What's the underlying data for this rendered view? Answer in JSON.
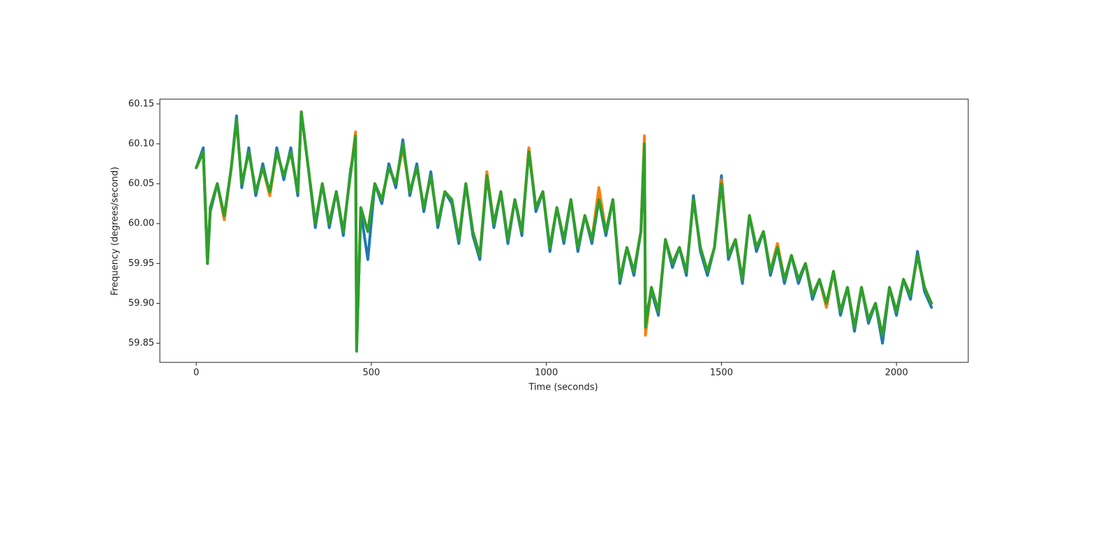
{
  "chart_data": {
    "type": "line",
    "xlabel": "Time (seconds)",
    "ylabel": "Frequency (degrees/second)",
    "xlim": [
      -104,
      2205
    ],
    "ylim": [
      59.826,
      60.156
    ],
    "xticks": [
      0,
      500,
      1000,
      1500,
      2000
    ],
    "yticks": [
      59.85,
      {
        "value": 59.9,
        "label": "59.90"
      },
      59.95,
      {
        "value": 60.0,
        "label": "60.00"
      },
      60.05,
      {
        "value": 60.1,
        "label": "60.10"
      },
      60.15
    ],
    "grid": false,
    "x": [
      0,
      20,
      32,
      40,
      60,
      80,
      100,
      115,
      130,
      150,
      170,
      190,
      210,
      230,
      250,
      270,
      290,
      300,
      320,
      340,
      360,
      380,
      400,
      420,
      440,
      455,
      458,
      470,
      490,
      510,
      530,
      550,
      570,
      590,
      610,
      630,
      650,
      670,
      690,
      710,
      730,
      750,
      770,
      790,
      810,
      830,
      850,
      870,
      890,
      910,
      930,
      950,
      970,
      990,
      1010,
      1030,
      1050,
      1070,
      1090,
      1110,
      1130,
      1150,
      1170,
      1190,
      1210,
      1230,
      1250,
      1270,
      1280,
      1283,
      1300,
      1320,
      1340,
      1360,
      1380,
      1400,
      1420,
      1440,
      1460,
      1480,
      1500,
      1520,
      1540,
      1560,
      1580,
      1600,
      1620,
      1640,
      1660,
      1680,
      1700,
      1720,
      1740,
      1760,
      1780,
      1800,
      1820,
      1840,
      1860,
      1880,
      1900,
      1920,
      1940,
      1960,
      1980,
      2000,
      2020,
      2040,
      2060,
      2080,
      2100
    ],
    "series": [
      {
        "color": "#1f77b4",
        "values": [
          60.07,
          60.095,
          59.95,
          60.015,
          60.05,
          60.005,
          60.07,
          60.135,
          60.045,
          60.095,
          60.035,
          60.075,
          60.035,
          60.095,
          60.055,
          60.095,
          60.035,
          60.14,
          60.07,
          59.995,
          60.05,
          59.995,
          60.04,
          59.985,
          60.065,
          60.105,
          59.845,
          60.015,
          59.955,
          60.05,
          60.025,
          60.075,
          60.045,
          60.105,
          60.035,
          60.075,
          60.015,
          60.065,
          59.995,
          60.04,
          60.025,
          59.975,
          60.05,
          59.985,
          59.955,
          60.06,
          59.995,
          60.04,
          59.975,
          60.03,
          59.985,
          60.095,
          60.015,
          60.04,
          59.965,
          60.02,
          59.975,
          60.03,
          59.965,
          60.01,
          59.975,
          60.03,
          59.985,
          60.03,
          59.925,
          59.97,
          59.935,
          59.99,
          60.1,
          59.88,
          59.915,
          59.885,
          59.98,
          59.945,
          59.97,
          59.935,
          60.035,
          59.965,
          59.935,
          59.97,
          60.06,
          59.955,
          59.98,
          59.925,
          60.01,
          59.965,
          59.99,
          59.935,
          59.97,
          59.925,
          59.96,
          59.925,
          59.95,
          59.905,
          59.93,
          59.895,
          59.94,
          59.885,
          59.92,
          59.865,
          59.92,
          59.875,
          59.9,
          59.85,
          59.92,
          59.885,
          59.93,
          59.905,
          59.965,
          59.915,
          59.895
        ]
      },
      {
        "color": "#ff7f0e",
        "values": [
          60.07,
          60.09,
          59.95,
          60.02,
          60.05,
          60.005,
          60.07,
          60.13,
          60.05,
          60.09,
          60.04,
          60.07,
          60.035,
          60.09,
          60.06,
          60.09,
          60.04,
          60.14,
          60.07,
          60.0,
          60.05,
          60.0,
          60.04,
          59.99,
          60.06,
          60.115,
          59.845,
          60.02,
          59.99,
          60.05,
          60.03,
          60.07,
          60.05,
          60.095,
          60.04,
          60.07,
          60.02,
          60.06,
          60.0,
          60.04,
          60.03,
          59.98,
          60.05,
          59.99,
          59.96,
          60.065,
          60.0,
          60.04,
          59.98,
          60.03,
          59.99,
          60.095,
          60.02,
          60.04,
          59.97,
          60.02,
          59.98,
          60.03,
          59.97,
          60.01,
          59.98,
          60.045,
          59.99,
          60.03,
          59.93,
          59.97,
          59.94,
          59.99,
          60.11,
          59.86,
          59.92,
          59.89,
          59.98,
          59.95,
          59.97,
          59.94,
          60.03,
          59.97,
          59.94,
          59.97,
          60.055,
          59.96,
          59.98,
          59.93,
          60.01,
          59.97,
          59.99,
          59.94,
          59.975,
          59.93,
          59.96,
          59.93,
          59.95,
          59.91,
          59.93,
          59.895,
          59.94,
          59.89,
          59.92,
          59.87,
          59.92,
          59.88,
          59.9,
          59.86,
          59.92,
          59.89,
          59.93,
          59.91,
          59.96,
          59.92,
          59.9
        ]
      },
      {
        "color": "#2ca02c",
        "values": [
          60.07,
          60.09,
          59.95,
          60.02,
          60.05,
          60.01,
          60.07,
          60.13,
          60.05,
          60.09,
          60.04,
          60.07,
          60.04,
          60.09,
          60.06,
          60.09,
          60.04,
          60.14,
          60.07,
          60.0,
          60.05,
          60.0,
          60.04,
          59.99,
          60.06,
          60.11,
          59.84,
          60.02,
          59.99,
          60.05,
          60.03,
          60.07,
          60.05,
          60.1,
          60.04,
          60.07,
          60.02,
          60.06,
          60.0,
          60.04,
          60.03,
          59.98,
          60.05,
          59.99,
          59.96,
          60.06,
          60.0,
          60.04,
          59.98,
          60.03,
          59.99,
          60.09,
          60.02,
          60.04,
          59.97,
          60.02,
          59.98,
          60.03,
          59.97,
          60.01,
          59.98,
          60.03,
          59.99,
          60.03,
          59.93,
          59.97,
          59.94,
          59.99,
          60.1,
          59.87,
          59.92,
          59.89,
          59.98,
          59.95,
          59.97,
          59.94,
          60.03,
          59.97,
          59.94,
          59.97,
          60.05,
          59.96,
          59.98,
          59.93,
          60.01,
          59.97,
          59.99,
          59.94,
          59.97,
          59.93,
          59.96,
          59.93,
          59.95,
          59.91,
          59.93,
          59.9,
          59.94,
          59.89,
          59.92,
          59.87,
          59.92,
          59.88,
          59.9,
          59.86,
          59.92,
          59.89,
          59.93,
          59.91,
          59.96,
          59.92,
          59.9
        ]
      }
    ]
  }
}
